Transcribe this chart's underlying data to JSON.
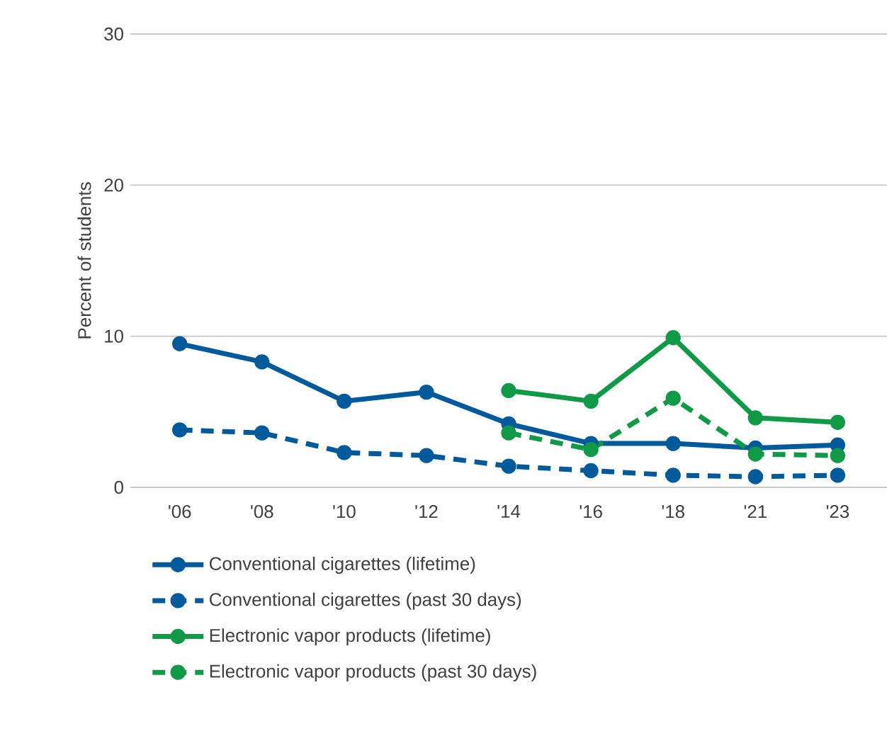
{
  "chart_data": {
    "type": "line",
    "ylabel": "Percent of students",
    "categories": [
      "'06",
      "'08",
      "'10",
      "'12",
      "'14",
      "'16",
      "'18",
      "'21",
      "'23"
    ],
    "series": [
      {
        "name": "Conventional cigarettes (lifetime)",
        "color": "#005a9c",
        "line_style": "solid",
        "values": [
          9.5,
          8.3,
          5.7,
          6.3,
          4.2,
          2.9,
          2.9,
          2.6,
          2.8
        ]
      },
      {
        "name": "Conventional cigarettes (past 30 days)",
        "color": "#005a9c",
        "line_style": "dashed",
        "values": [
          3.8,
          3.6,
          2.3,
          2.1,
          1.4,
          1.1,
          0.8,
          0.7,
          0.8
        ]
      },
      {
        "name": "Electronic vapor products (lifetime)",
        "color": "#109a48",
        "line_style": "solid",
        "values": [
          null,
          null,
          null,
          null,
          6.4,
          5.7,
          9.9,
          4.6,
          4.3
        ]
      },
      {
        "name": "Electronic vapor products (past 30 days)",
        "color": "#109a48",
        "line_style": "dashed",
        "values": [
          null,
          null,
          null,
          null,
          3.6,
          2.5,
          5.9,
          2.2,
          2.1
        ]
      }
    ],
    "ylim": [
      0,
      30
    ],
    "yticks": [
      0,
      10,
      20,
      30
    ],
    "grid": "y",
    "legend": "bottom",
    "marker": "circle"
  }
}
